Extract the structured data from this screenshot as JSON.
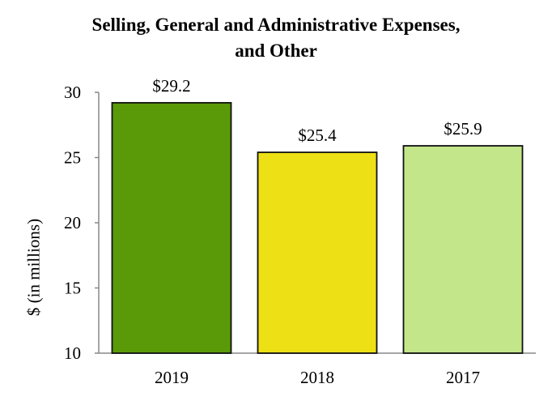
{
  "chart_data": {
    "type": "bar",
    "title": "Selling, General and Administrative Expenses,",
    "subtitle": "and Other",
    "ylabel": "$ (in millions)",
    "xlabel": "",
    "categories": [
      "2019",
      "2018",
      "2017"
    ],
    "values": [
      29.2,
      25.4,
      25.9
    ],
    "data_labels": [
      "$29.2",
      "$25.4",
      "$25.9"
    ],
    "colors": [
      "#5a9a08",
      "#ede015",
      "#c3e68a"
    ],
    "ylim": [
      10,
      30
    ],
    "yticks": [
      "10",
      "15",
      "20",
      "25",
      "30"
    ],
    "grid": false
  }
}
